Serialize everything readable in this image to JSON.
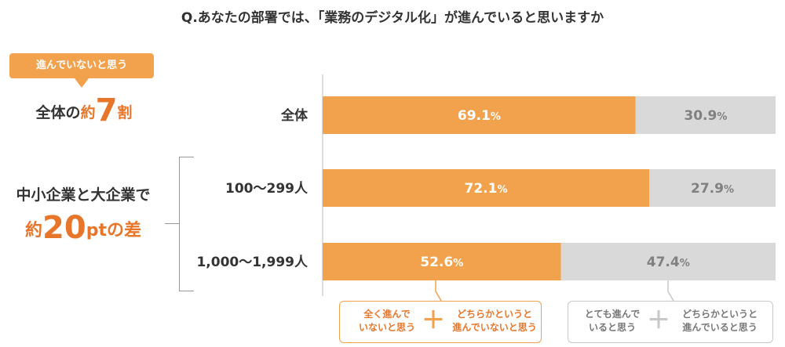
{
  "title": "Q.あなたの部署では、「業務のデジタル化」が進んでいると思いますか",
  "summary": {
    "tag": "進んでいないと思う",
    "whole_pre": "全体の",
    "whole_em": "約",
    "whole_big": "7",
    "whole_post": "割",
    "gap_line1": "中小企業と大企業で",
    "gap_pre": "約",
    "gap_big": "20",
    "gap_post": "ptの差"
  },
  "legend": {
    "not_left": "全く進んで\nいないと思う",
    "not_plus": "＋",
    "not_right": "どちらかというと\n進んでいないと思う",
    "yes_left": "とても進んで\nいると思う",
    "yes_plus": "＋",
    "yes_right": "どちらかというと\n進んでいると思う"
  },
  "chart_data": {
    "type": "bar",
    "orientation": "horizontal",
    "stacked": true,
    "categories": [
      "全体",
      "100～299人",
      "1,000～1,999人"
    ],
    "series": [
      {
        "values": [
          69.1,
          72.1,
          52.6
        ],
        "color": "#f2a24c",
        "label_color": "#ffffff"
      },
      {
        "values": [
          30.9,
          27.9,
          47.4
        ],
        "color": "#d9d9d9",
        "label_color": "#808080"
      }
    ],
    "unit": "%",
    "xlim": [
      0,
      100
    ],
    "grid": false,
    "legend": "bottom"
  }
}
